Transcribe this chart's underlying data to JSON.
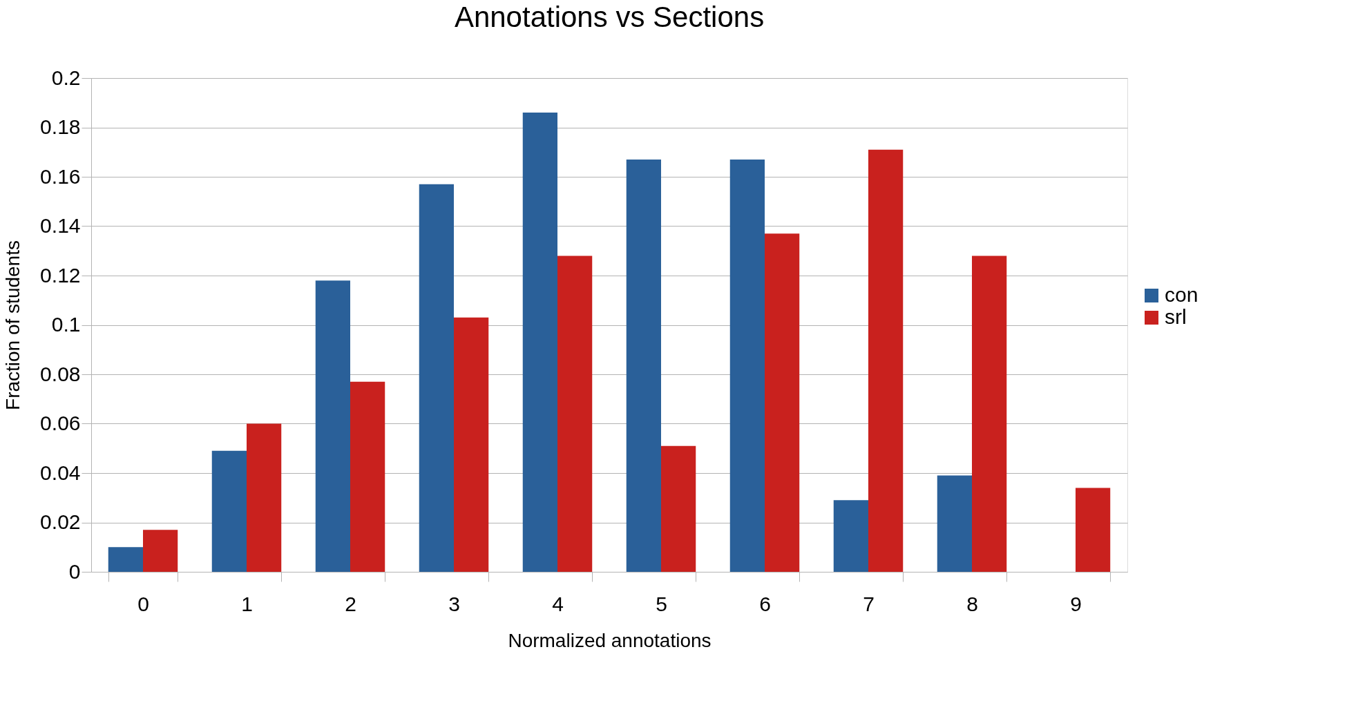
{
  "chart_data": {
    "type": "bar",
    "title": "Annotations vs Sections",
    "xlabel": "Normalized annotations",
    "ylabel": "Fraction of students",
    "categories": [
      "0",
      "1",
      "2",
      "3",
      "4",
      "5",
      "6",
      "7",
      "8",
      "9"
    ],
    "series": [
      {
        "name": "con",
        "color": "#2a6099",
        "values": [
          0.01,
          0.049,
          0.118,
          0.157,
          0.186,
          0.167,
          0.167,
          0.029,
          0.039,
          0
        ]
      },
      {
        "name": "srl",
        "color": "#c9211e",
        "values": [
          0.017,
          0.06,
          0.077,
          0.103,
          0.128,
          0.051,
          0.137,
          0.171,
          0.128,
          0.034
        ]
      }
    ],
    "ylim": [
      0,
      0.2
    ],
    "yticks": [
      0,
      0.02,
      0.04,
      0.06,
      0.08,
      0.1,
      0.12,
      0.14,
      0.16,
      0.18,
      0.2
    ],
    "grid": "y",
    "legend": "right"
  }
}
